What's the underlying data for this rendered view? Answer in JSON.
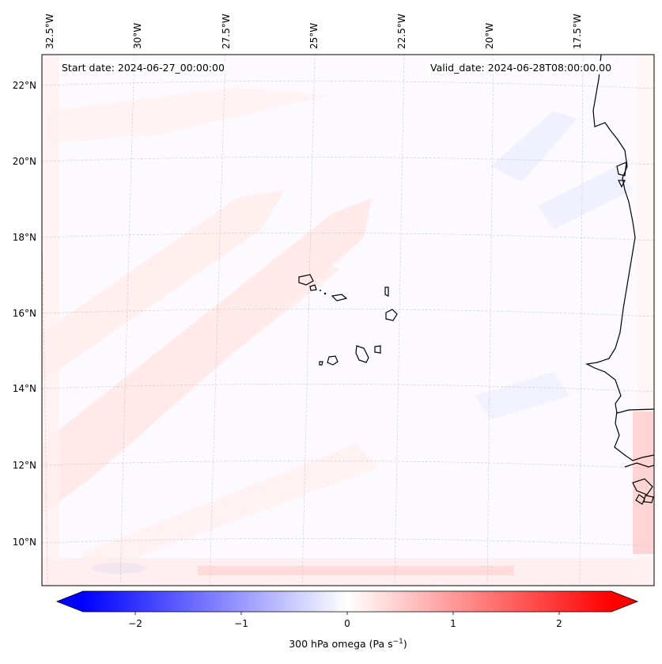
{
  "annotations": {
    "start_date": "Start date: 2024-06-27_00:00:00",
    "valid_date": "Valid_date: 2024-06-28T08:00:00.00"
  },
  "longitude_labels": [
    "32.5°W",
    "30°W",
    "27.5°W",
    "25°W",
    "22.5°W",
    "20°W",
    "17.5°W"
  ],
  "latitude_labels": [
    "22°N",
    "20°N",
    "18°N",
    "16°N",
    "14°N",
    "12°N",
    "10°N"
  ],
  "colorbar": {
    "label_prefix": "300 hPa omega (Pa s",
    "label_exponent": "−1",
    "label_suffix": ")",
    "ticks": [
      "−2",
      "−1",
      "0",
      "1",
      "2"
    ],
    "range": [
      -2.5,
      2.5
    ],
    "extend": "both",
    "colormap": "bwr",
    "colors": {
      "min": "#0000ff",
      "mid": "#ffffff",
      "max": "#ff0000"
    }
  },
  "map": {
    "field": "300 hPa omega",
    "gridlines": true,
    "coastline_color": "#000000",
    "gridline_color": "#c8c8c8"
  }
}
